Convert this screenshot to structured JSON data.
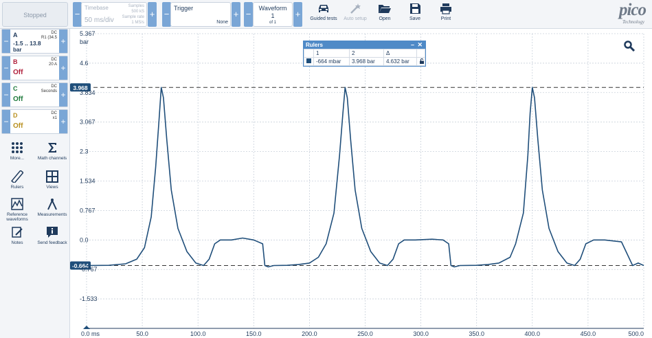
{
  "toolbar": {
    "status": "Stopped",
    "timebase": {
      "label": "Timebase",
      "value": "50 ms/div",
      "samples_label": "Samples",
      "samples_value": "500 kS",
      "rate_label": "Sample rate",
      "rate_value": "1 MS/s"
    },
    "trigger": {
      "label": "Trigger",
      "mode": "None"
    },
    "waveform": {
      "label": "Waveform",
      "current": "1",
      "of": "of 1"
    },
    "buttons": [
      {
        "label": "Guided tests",
        "icon": "car-icon"
      },
      {
        "label": "Auto setup",
        "icon": "magic-wand-icon"
      },
      {
        "label": "Open",
        "icon": "folder-open-icon"
      },
      {
        "label": "Save",
        "icon": "floppy-disk-icon"
      },
      {
        "label": "Print",
        "icon": "printer-icon"
      }
    ],
    "logo": {
      "text": "pico",
      "subtext": "Technology"
    }
  },
  "channels": [
    {
      "letter": "A",
      "range": "-1.5 .. 13.8",
      "unit": "bar",
      "coupling": "DC",
      "probe": "R1 (34.5",
      "color": "#1f3a5c"
    },
    {
      "letter": "B",
      "range": "Off",
      "unit": "",
      "coupling": "DC",
      "probe": "20 A",
      "color": "#b0203c"
    },
    {
      "letter": "C",
      "range": "Off",
      "unit": "",
      "coupling": "DC",
      "probe": "Seconds",
      "color": "#1e7a3c"
    },
    {
      "letter": "D",
      "range": "Off",
      "unit": "",
      "coupling": "DC",
      "probe": "x1",
      "color": "#b89020"
    }
  ],
  "tools": [
    {
      "label": "More...",
      "icon": "grid-dots-icon"
    },
    {
      "label": "Math channels",
      "icon": "sigma-icon"
    },
    {
      "label": "Rulers",
      "icon": "ruler-icon"
    },
    {
      "label": "Views",
      "icon": "views-grid-icon"
    },
    {
      "label": "Reference waveforms",
      "icon": "reference-waveform-icon"
    },
    {
      "label": "Measurements",
      "icon": "measurements-compass-icon"
    },
    {
      "label": "Notes",
      "icon": "notes-icon"
    },
    {
      "label": "Send feedback",
      "icon": "feedback-info-icon"
    }
  ],
  "rulers": {
    "title": "Rulers",
    "col1": "1",
    "col2": "2",
    "col3": "Δ",
    "v1": "-664 mbar",
    "v2": "3.968 bar",
    "delta": "4.632 bar"
  },
  "chart_data": {
    "type": "line",
    "y_unit": "bar",
    "x_unit": "ms",
    "xlim": [
      0,
      500
    ],
    "ylim": [
      -2.3,
      5.367
    ],
    "y_ticks": [
      "5.367",
      "4.6",
      "3.834",
      "3.067",
      "2.3",
      "1.534",
      "0.767",
      "0.0",
      "-0.767",
      "-1.533"
    ],
    "x_ticks": [
      "0.0 ms",
      "50.0",
      "100.0",
      "150.0",
      "200.0",
      "250.0",
      "300.0",
      "350.0",
      "400.0",
      "450.0",
      "500.0"
    ],
    "ruler_upper": 3.968,
    "ruler_lower": -0.664,
    "ruler_upper_label": "3.968",
    "ruler_lower_label": "-0.664",
    "series": [
      {
        "color": "#1f4e7a",
        "x": [
          0,
          20,
          35,
          45,
          52,
          58,
          62,
          65,
          67,
          69,
          72,
          76,
          82,
          90,
          98,
          105,
          110,
          115,
          120,
          130,
          140,
          150,
          158,
          160,
          163,
          168,
          180,
          190,
          200,
          208,
          215,
          222,
          227,
          230,
          232,
          234,
          237,
          241,
          247,
          255,
          263,
          270,
          275,
          280,
          285,
          295,
          310,
          320,
          325,
          327,
          330,
          335,
          350,
          360,
          370,
          380,
          385,
          392,
          396,
          398,
          400,
          402,
          405,
          409,
          415,
          423,
          431,
          438,
          443,
          448,
          455,
          465,
          480,
          490,
          495,
          500
        ],
        "y": [
          -0.664,
          -0.66,
          -0.62,
          -0.5,
          -0.2,
          0.6,
          1.9,
          3.1,
          3.968,
          3.7,
          2.6,
          1.3,
          0.3,
          -0.3,
          -0.6,
          -0.664,
          -0.5,
          -0.1,
          0.0,
          0.0,
          0.05,
          0.0,
          -0.1,
          -0.664,
          -0.7,
          -0.664,
          -0.66,
          -0.64,
          -0.6,
          -0.45,
          -0.1,
          0.7,
          2.2,
          3.3,
          3.968,
          3.7,
          2.6,
          1.3,
          0.3,
          -0.3,
          -0.6,
          -0.664,
          -0.5,
          -0.1,
          0.0,
          0.0,
          0.02,
          0.0,
          -0.1,
          -0.664,
          -0.7,
          -0.664,
          -0.66,
          -0.64,
          -0.6,
          -0.45,
          -0.1,
          0.7,
          2.2,
          3.3,
          3.968,
          3.7,
          2.6,
          1.3,
          0.3,
          -0.3,
          -0.6,
          -0.664,
          -0.5,
          -0.1,
          0.0,
          0.0,
          -0.05,
          -0.664,
          -0.6,
          -0.664
        ]
      }
    ]
  }
}
